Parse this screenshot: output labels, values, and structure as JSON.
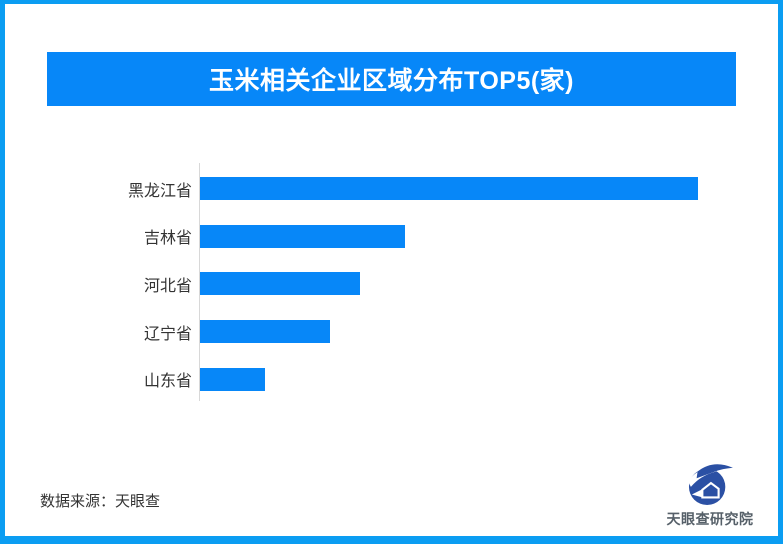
{
  "page": {
    "border_color": "#0b9df2",
    "background_color": "#ffffff",
    "accent_color": "#0787f8"
  },
  "header": {
    "title": "玉米相关企业区域分布TOP5(家)",
    "background_color": "#0787f8",
    "text_color": "#ffffff"
  },
  "chart_data": {
    "type": "bar",
    "orientation": "horizontal",
    "title": "玉米相关企业区域分布TOP5(家)",
    "unit": "家",
    "categories": [
      "黑龙江省",
      "吉林省",
      "河北省",
      "辽宁省",
      "山东省"
    ],
    "values_relative_pct_of_max": [
      100,
      41,
      32,
      26,
      13
    ],
    "bar_pixel_widths": [
      498,
      205,
      160,
      130,
      65
    ],
    "value_labels_visible": false,
    "x_axis_ticks_visible": false,
    "grid": "off",
    "legend": "none",
    "bar_color": "#0787f8",
    "axis_line_color": "#d8d8d8",
    "label_color": "#333333"
  },
  "footer": {
    "source_text": "数据来源：天眼查"
  },
  "logo": {
    "icon": "tianyancha-eye-logo-icon",
    "icon_color": "#2b50a4",
    "text": "天眼查研究院",
    "text_color": "#566069"
  }
}
